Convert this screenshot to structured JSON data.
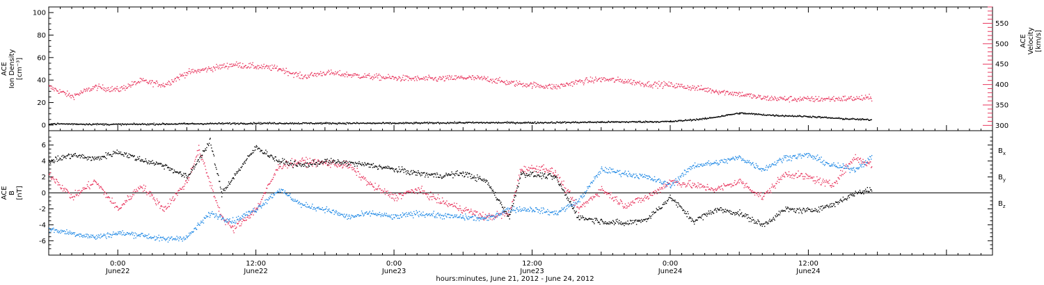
{
  "chart_data": [
    {
      "type": "scatter",
      "panel": "top",
      "x_range": [
        "2012-06-21T18:00",
        "2012-06-25T04:00"
      ],
      "y_left": {
        "label_lines": [
          "ACE",
          "Ion Density",
          "[cm⁻³]"
        ],
        "ylim": [
          -5,
          105
        ],
        "ticks": [
          0,
          20,
          40,
          60,
          80,
          100
        ]
      },
      "y_right": {
        "label_lines": [
          "ACE",
          "Velocity",
          "[km/s]"
        ],
        "ylim": [
          287,
          590
        ],
        "ticks": [
          300,
          350,
          400,
          450,
          500,
          550
        ],
        "color": "#e8365e"
      },
      "series": [
        {
          "axis": "right",
          "color": "#e8365e",
          "points": [
            [
              "2012-06-21T18:00",
              395
            ],
            [
              "2012-06-21T20:00",
              372
            ],
            [
              "2012-06-21T22:00",
              395
            ],
            [
              "2012-06-22T00:00",
              388
            ],
            [
              "2012-06-22T02:00",
              410
            ],
            [
              "2012-06-22T04:00",
              400
            ],
            [
              "2012-06-22T06:00",
              430
            ],
            [
              "2012-06-22T08:00",
              440
            ],
            [
              "2012-06-22T10:00",
              450
            ],
            [
              "2012-06-22T12:00",
              445
            ],
            [
              "2012-06-22T14:00",
              440
            ],
            [
              "2012-06-22T16:00",
              420
            ],
            [
              "2012-06-22T18:00",
              430
            ],
            [
              "2012-06-22T20:00",
              425
            ],
            [
              "2012-06-22T22:00",
              420
            ],
            [
              "2012-06-23T00:00",
              417
            ],
            [
              "2012-06-23T02:00",
              415
            ],
            [
              "2012-06-23T04:00",
              415
            ],
            [
              "2012-06-23T06:00",
              418
            ],
            [
              "2012-06-23T08:00",
              415
            ],
            [
              "2012-06-23T10:00",
              405
            ],
            [
              "2012-06-23T12:00",
              400
            ],
            [
              "2012-06-23T14:00",
              395
            ],
            [
              "2012-06-23T16:00",
              408
            ],
            [
              "2012-06-23T18:00",
              414
            ],
            [
              "2012-06-23T20:00",
              410
            ],
            [
              "2012-06-23T22:00",
              402
            ],
            [
              "2012-06-24T00:00",
              400
            ],
            [
              "2012-06-24T02:00",
              393
            ],
            [
              "2012-06-24T04:00",
              385
            ],
            [
              "2012-06-24T06:00",
              378
            ],
            [
              "2012-06-24T08:00",
              368
            ],
            [
              "2012-06-24T10:00",
              366
            ],
            [
              "2012-06-24T12:00",
              365
            ],
            [
              "2012-06-24T14:00",
              366
            ],
            [
              "2012-06-24T16:00",
              367
            ],
            [
              "2012-06-24T17:30",
              368
            ]
          ]
        },
        {
          "axis": "left",
          "color": "#000000",
          "points": [
            [
              "2012-06-21T18:00",
              1.5
            ],
            [
              "2012-06-22T00:00",
              1.0
            ],
            [
              "2012-06-22T06:00",
              1.5
            ],
            [
              "2012-06-22T12:00",
              2.0
            ],
            [
              "2012-06-22T18:00",
              2.0
            ],
            [
              "2012-06-23T00:00",
              2.0
            ],
            [
              "2012-06-23T06:00",
              2.5
            ],
            [
              "2012-06-23T12:00",
              2.5
            ],
            [
              "2012-06-23T18:00",
              3.0
            ],
            [
              "2012-06-24T00:00",
              3.5
            ],
            [
              "2012-06-24T03:00",
              6
            ],
            [
              "2012-06-24T06:00",
              11
            ],
            [
              "2012-06-24T09:00",
              9
            ],
            [
              "2012-06-24T12:00",
              8
            ],
            [
              "2012-06-24T15:00",
              6
            ],
            [
              "2012-06-24T17:30",
              5
            ]
          ]
        }
      ]
    },
    {
      "type": "scatter",
      "panel": "bottom",
      "x_range": [
        "2012-06-21T18:00",
        "2012-06-25T04:00"
      ],
      "y": {
        "label_lines": [
          "ACE",
          "B",
          "[nT]"
        ],
        "ylim": [
          -7.8,
          7.8
        ],
        "ticks": [
          -6,
          -4,
          -2,
          0,
          2,
          4,
          6
        ]
      },
      "legend": [
        {
          "base": "B",
          "sub": "x",
          "color": "#000000"
        },
        {
          "base": "B",
          "sub": "y",
          "color": "#1e88e5"
        },
        {
          "base": "B",
          "sub": "z",
          "color": "#e8365e"
        }
      ],
      "series": [
        {
          "color": "#000000",
          "points": [
            [
              "2012-06-21T18:00",
              4.0
            ],
            [
              "2012-06-21T20:00",
              4.8
            ],
            [
              "2012-06-21T22:00",
              4.3
            ],
            [
              "2012-06-22T00:00",
              5.2
            ],
            [
              "2012-06-22T02:00",
              4.2
            ],
            [
              "2012-06-22T04:00",
              3.5
            ],
            [
              "2012-06-22T06:00",
              2.0
            ],
            [
              "2012-06-22T08:00",
              6.5
            ],
            [
              "2012-06-22T09:00",
              0.0
            ],
            [
              "2012-06-22T10:00",
              2.0
            ],
            [
              "2012-06-22T12:00",
              5.8
            ],
            [
              "2012-06-22T14:00",
              4.0
            ],
            [
              "2012-06-22T16:00",
              3.5
            ],
            [
              "2012-06-22T18:00",
              4.0
            ],
            [
              "2012-06-22T20:00",
              3.8
            ],
            [
              "2012-06-22T22:00",
              3.5
            ],
            [
              "2012-06-23T00:00",
              3.0
            ],
            [
              "2012-06-23T02:00",
              2.5
            ],
            [
              "2012-06-23T04:00",
              2.2
            ],
            [
              "2012-06-23T06:00",
              2.5
            ],
            [
              "2012-06-23T08:00",
              1.5
            ],
            [
              "2012-06-23T10:00",
              -3.0
            ],
            [
              "2012-06-23T11:00",
              2.5
            ],
            [
              "2012-06-23T13:00",
              2.2
            ],
            [
              "2012-06-23T14:00",
              2.0
            ],
            [
              "2012-06-23T16:00",
              -3.0
            ],
            [
              "2012-06-23T18:00",
              -3.5
            ],
            [
              "2012-06-23T20:00",
              -3.8
            ],
            [
              "2012-06-23T22:00",
              -3.2
            ],
            [
              "2012-06-24T00:00",
              -0.5
            ],
            [
              "2012-06-24T02:00",
              -3.5
            ],
            [
              "2012-06-24T04:00",
              -2.0
            ],
            [
              "2012-06-24T06:00",
              -2.5
            ],
            [
              "2012-06-24T08:00",
              -4.0
            ],
            [
              "2012-06-24T10:00",
              -2.0
            ],
            [
              "2012-06-24T12:00",
              -2.2
            ],
            [
              "2012-06-24T14:00",
              -1.5
            ],
            [
              "2012-06-24T16:00",
              0.0
            ],
            [
              "2012-06-24T17:30",
              0.5
            ]
          ]
        },
        {
          "color": "#1e88e5",
          "points": [
            [
              "2012-06-21T18:00",
              -4.5
            ],
            [
              "2012-06-21T20:00",
              -5.0
            ],
            [
              "2012-06-21T22:00",
              -5.5
            ],
            [
              "2012-06-22T00:00",
              -5.0
            ],
            [
              "2012-06-22T02:00",
              -5.2
            ],
            [
              "2012-06-22T04:00",
              -5.8
            ],
            [
              "2012-06-22T06:00",
              -5.5
            ],
            [
              "2012-06-22T08:00",
              -2.5
            ],
            [
              "2012-06-22T10:00",
              -3.5
            ],
            [
              "2012-06-22T12:00",
              -2.0
            ],
            [
              "2012-06-22T14:00",
              0.5
            ],
            [
              "2012-06-22T16:00",
              -1.5
            ],
            [
              "2012-06-22T18:00",
              -2.0
            ],
            [
              "2012-06-22T20:00",
              -3.0
            ],
            [
              "2012-06-22T22:00",
              -2.5
            ],
            [
              "2012-06-23T00:00",
              -3.0
            ],
            [
              "2012-06-23T02:00",
              -2.5
            ],
            [
              "2012-06-23T04:00",
              -2.8
            ],
            [
              "2012-06-23T06:00",
              -3.0
            ],
            [
              "2012-06-23T08:00",
              -3.2
            ],
            [
              "2012-06-23T10:00",
              -2.0
            ],
            [
              "2012-06-23T12:00",
              -2.0
            ],
            [
              "2012-06-23T14:00",
              -2.5
            ],
            [
              "2012-06-23T16:00",
              -1.0
            ],
            [
              "2012-06-23T18:00",
              3.0
            ],
            [
              "2012-06-23T20:00",
              2.5
            ],
            [
              "2012-06-23T22:00",
              2.0
            ],
            [
              "2012-06-24T00:00",
              1.0
            ],
            [
              "2012-06-24T02:00",
              3.5
            ],
            [
              "2012-06-24T04:00",
              3.8
            ],
            [
              "2012-06-24T06:00",
              4.5
            ],
            [
              "2012-06-24T08:00",
              3.0
            ],
            [
              "2012-06-24T10:00",
              4.5
            ],
            [
              "2012-06-24T12:00",
              4.8
            ],
            [
              "2012-06-24T14:00",
              3.5
            ],
            [
              "2012-06-24T16:00",
              3.0
            ],
            [
              "2012-06-24T17:30",
              4.5
            ]
          ]
        },
        {
          "color": "#e8365e",
          "points": [
            [
              "2012-06-21T18:00",
              2.5
            ],
            [
              "2012-06-21T20:00",
              -0.5
            ],
            [
              "2012-06-21T22:00",
              1.5
            ],
            [
              "2012-06-22T00:00",
              -2.0
            ],
            [
              "2012-06-22T02:00",
              1.0
            ],
            [
              "2012-06-22T04:00",
              -2.0
            ],
            [
              "2012-06-22T06:00",
              1.5
            ],
            [
              "2012-06-22T07:00",
              5.5
            ],
            [
              "2012-06-22T09:00",
              -3.0
            ],
            [
              "2012-06-22T10:00",
              -4.5
            ],
            [
              "2012-06-22T12:00",
              -2.0
            ],
            [
              "2012-06-22T14:00",
              3.5
            ],
            [
              "2012-06-22T16:00",
              4.0
            ],
            [
              "2012-06-22T18:00",
              3.8
            ],
            [
              "2012-06-22T20:00",
              3.5
            ],
            [
              "2012-06-22T22:00",
              1.0
            ],
            [
              "2012-06-23T00:00",
              -0.5
            ],
            [
              "2012-06-23T02:00",
              0.5
            ],
            [
              "2012-06-23T04:00",
              -1.0
            ],
            [
              "2012-06-23T06:00",
              -2.0
            ],
            [
              "2012-06-23T08:00",
              -3.0
            ],
            [
              "2012-06-23T10:00",
              -2.5
            ],
            [
              "2012-06-23T11:00",
              3.0
            ],
            [
              "2012-06-23T13:00",
              3.2
            ],
            [
              "2012-06-23T14:00",
              2.5
            ],
            [
              "2012-06-23T16:00",
              -2.0
            ],
            [
              "2012-06-23T18:00",
              0.5
            ],
            [
              "2012-06-23T20:00",
              -1.5
            ],
            [
              "2012-06-23T22:00",
              -0.5
            ],
            [
              "2012-06-24T00:00",
              1.5
            ],
            [
              "2012-06-24T02:00",
              1.0
            ],
            [
              "2012-06-24T04:00",
              0.5
            ],
            [
              "2012-06-24T06:00",
              1.5
            ],
            [
              "2012-06-24T08:00",
              -0.5
            ],
            [
              "2012-06-24T10:00",
              2.5
            ],
            [
              "2012-06-24T12:00",
              2.0
            ],
            [
              "2012-06-24T14:00",
              1.0
            ],
            [
              "2012-06-24T16:00",
              4.5
            ],
            [
              "2012-06-24T17:30",
              3.5
            ]
          ]
        }
      ]
    }
  ],
  "x_axis": {
    "ticks": [
      {
        "time": "2012-06-22T00:00",
        "line1": "0:00",
        "line2": "June22"
      },
      {
        "time": "2012-06-22T12:00",
        "line1": "12:00",
        "line2": "June22"
      },
      {
        "time": "2012-06-23T00:00",
        "line1": "0:00",
        "line2": "June23"
      },
      {
        "time": "2012-06-23T12:00",
        "line1": "12:00",
        "line2": "June23"
      },
      {
        "time": "2012-06-24T00:00",
        "line1": "0:00",
        "line2": "June24"
      },
      {
        "time": "2012-06-24T12:00",
        "line1": "12:00",
        "line2": "June24"
      }
    ],
    "title": "hours:minutes, June 21, 2012 - June 24, 2012"
  }
}
